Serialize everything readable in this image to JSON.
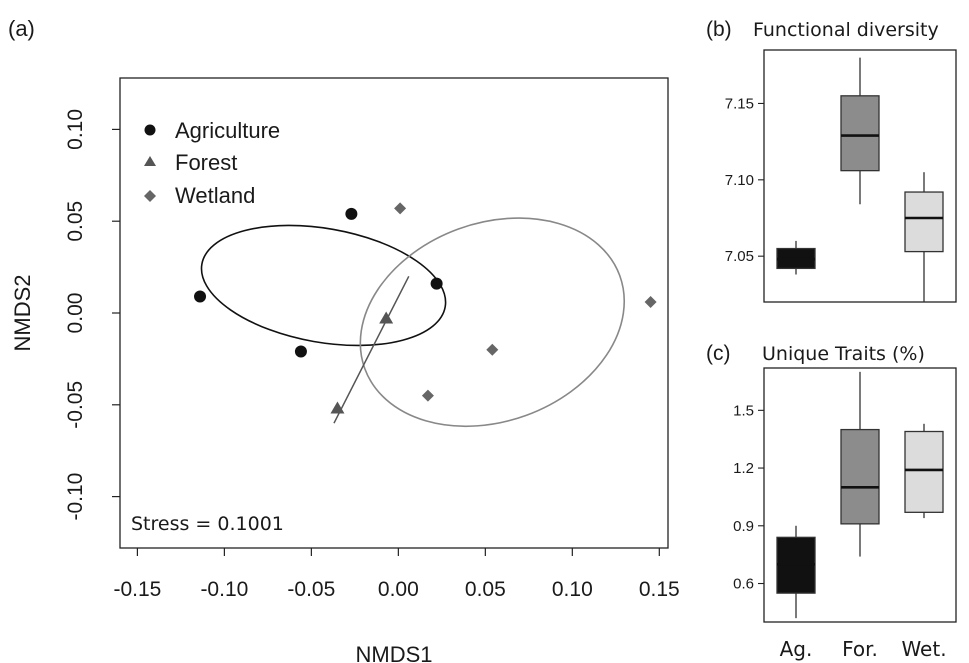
{
  "chart_data": [
    {
      "panel_label": "(a)",
      "type": "scatter",
      "xlabel": "NMDS1",
      "ylabel": "NMDS2",
      "xlim": [
        -0.16,
        0.155
      ],
      "ylim": [
        -0.128,
        0.128
      ],
      "x_ticks": [
        "-0.15",
        "-0.10",
        "-0.05",
        "0.00",
        "0.05",
        "0.10",
        "0.15"
      ],
      "y_ticks": [
        "-0.10",
        "-0.05",
        "0.00",
        "0.05",
        "0.10"
      ],
      "annotation": "Stress = 0.1001",
      "legend_position": "top-left",
      "series": [
        {
          "name": "Agriculture",
          "marker": "circle",
          "color": "#111111",
          "points": [
            [
              -0.114,
              0.009
            ],
            [
              -0.056,
              -0.021
            ],
            [
              -0.027,
              0.054
            ],
            [
              0.022,
              0.016
            ]
          ]
        },
        {
          "name": "Forest",
          "marker": "triangle",
          "color": "#555555",
          "points": [
            [
              -0.035,
              -0.052
            ],
            [
              -0.007,
              -0.003
            ]
          ]
        },
        {
          "name": "Wetland",
          "marker": "diamond",
          "color": "#666666",
          "points": [
            [
              0.001,
              0.057
            ],
            [
              0.017,
              -0.045
            ],
            [
              0.054,
              -0.02
            ],
            [
              0.145,
              0.006
            ]
          ]
        }
      ],
      "ellipses": [
        {
          "group": "Agriculture",
          "color": "#111111",
          "center": [
            -0.043,
            0.015
          ],
          "rx": 0.071,
          "ry": 0.031,
          "angle_deg": 10
        },
        {
          "group": "Wetland",
          "color": "#888888",
          "center": [
            0.054,
            -0.005
          ],
          "rx": 0.078,
          "ry": 0.054,
          "angle_deg": -20
        }
      ],
      "lines": [
        {
          "group": "Forest",
          "color": "#555555",
          "from": [
            -0.037,
            -0.06
          ],
          "to": [
            0.006,
            0.02
          ]
        }
      ]
    },
    {
      "panel_label": "(b)",
      "type": "box",
      "title": "Functional diversity",
      "ylim": [
        7.02,
        7.185
      ],
      "y_ticks": [
        "7.05",
        "7.10",
        "7.15"
      ],
      "categories": [
        "Ag.",
        "For.",
        "Wet."
      ],
      "boxes": [
        {
          "min": 7.038,
          "q1": 7.042,
          "median": 7.048,
          "q3": 7.055,
          "max": 7.06,
          "fill": "#111111"
        },
        {
          "min": 7.084,
          "q1": 7.106,
          "median": 7.129,
          "q3": 7.155,
          "max": 7.18,
          "fill": "#8c8c8c"
        },
        {
          "min": 7.02,
          "q1": 7.053,
          "median": 7.075,
          "q3": 7.092,
          "max": 7.105,
          "fill": "#dcdcdc"
        }
      ]
    },
    {
      "panel_label": "(c)",
      "type": "box",
      "title": "Unique Traits (%)",
      "ylim": [
        0.4,
        1.72
      ],
      "y_ticks": [
        "0.6",
        "0.9",
        "1.2",
        "1.5"
      ],
      "categories": [
        "Ag.",
        "For.",
        "Wet."
      ],
      "boxes": [
        {
          "min": 0.42,
          "q1": 0.55,
          "median": 0.7,
          "q3": 0.84,
          "max": 0.9,
          "fill": "#111111"
        },
        {
          "min": 0.74,
          "q1": 0.91,
          "median": 1.1,
          "q3": 1.4,
          "max": 1.7,
          "fill": "#8c8c8c"
        },
        {
          "min": 0.94,
          "q1": 0.97,
          "median": 1.19,
          "q3": 1.39,
          "max": 1.43,
          "fill": "#dcdcdc"
        }
      ]
    }
  ]
}
